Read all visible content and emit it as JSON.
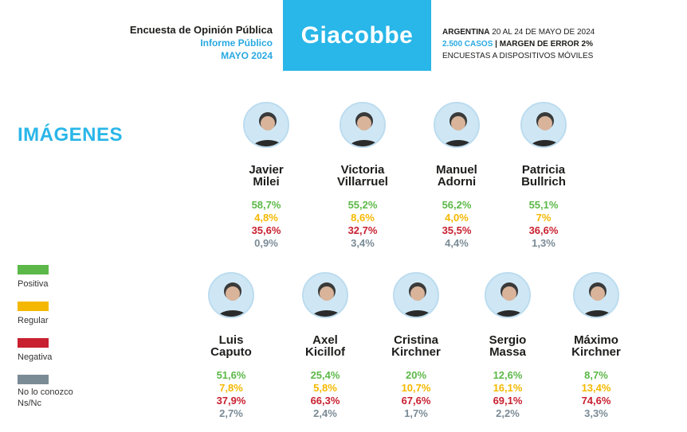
{
  "header": {
    "title": "Encuesta de Opinión Pública",
    "subtitle": "Informe Público",
    "date": "MAYO 2024",
    "brand": "Giacobbe",
    "info_country": "ARGENTINA",
    "info_dates": " 20 AL 24 DE MAYO DE 2024",
    "info_cases": "2.500 CASOS",
    "info_sep": " | ",
    "info_margin": "MARGEN DE ERROR 2%",
    "info_method": "ENCUESTAS A DISPOSITIVOS MÓVILES"
  },
  "section_title": "IMÁGENES",
  "colors": {
    "brand": "#29b6e8",
    "positiva": "#5cb848",
    "regular": "#f5b800",
    "negativa": "#c8202f",
    "nn": "#7b8b96"
  },
  "legend": [
    {
      "label": "Positiva",
      "color": "#5cb848"
    },
    {
      "label": "Regular",
      "color": "#f5b800"
    },
    {
      "label": "Negativa",
      "color": "#c8202f"
    },
    {
      "label": "No lo conozco\nNs/Nc",
      "color": "#7b8b96"
    }
  ],
  "chart_data": {
    "type": "table",
    "title": "IMÁGENES",
    "series_names": [
      "Positiva",
      "Regular",
      "Negativa",
      "No lo conozco Ns/Nc"
    ],
    "people": [
      {
        "first": "Javier",
        "last": "Milei",
        "positiva": "58,7%",
        "regular": "4,8%",
        "negativa": "35,6%",
        "nn": "0,9%"
      },
      {
        "first": "Victoria",
        "last": "Villarruel",
        "positiva": "55,2%",
        "regular": "8,6%",
        "negativa": "32,7%",
        "nn": "3,4%"
      },
      {
        "first": "Manuel",
        "last": "Adorni",
        "positiva": "56,2%",
        "regular": "4,0%",
        "negativa": "35,5%",
        "nn": "4,4%"
      },
      {
        "first": "Patricia",
        "last": "Bullrich",
        "positiva": "55,1%",
        "regular": "7%",
        "negativa": "36,6%",
        "nn": "1,3%"
      },
      {
        "first": "Luis",
        "last": "Caputo",
        "positiva": "51,6%",
        "regular": "7,8%",
        "negativa": "37,9%",
        "nn": "2,7%"
      },
      {
        "first": "Axel",
        "last": "Kicillof",
        "positiva": "25,4%",
        "regular": "5,8%",
        "negativa": "66,3%",
        "nn": "2,4%"
      },
      {
        "first": "Cristina",
        "last": "Kirchner",
        "positiva": "20%",
        "regular": "10,7%",
        "negativa": "67,6%",
        "nn": "1,7%"
      },
      {
        "first": "Sergio",
        "last": "Massa",
        "positiva": "12,6%",
        "regular": "16,1%",
        "negativa": "69,1%",
        "nn": "2,2%"
      },
      {
        "first": "Máximo",
        "last": "Kirchner",
        "positiva": "8,7%",
        "regular": "13,4%",
        "negativa": "74,6%",
        "nn": "3,3%"
      }
    ]
  }
}
